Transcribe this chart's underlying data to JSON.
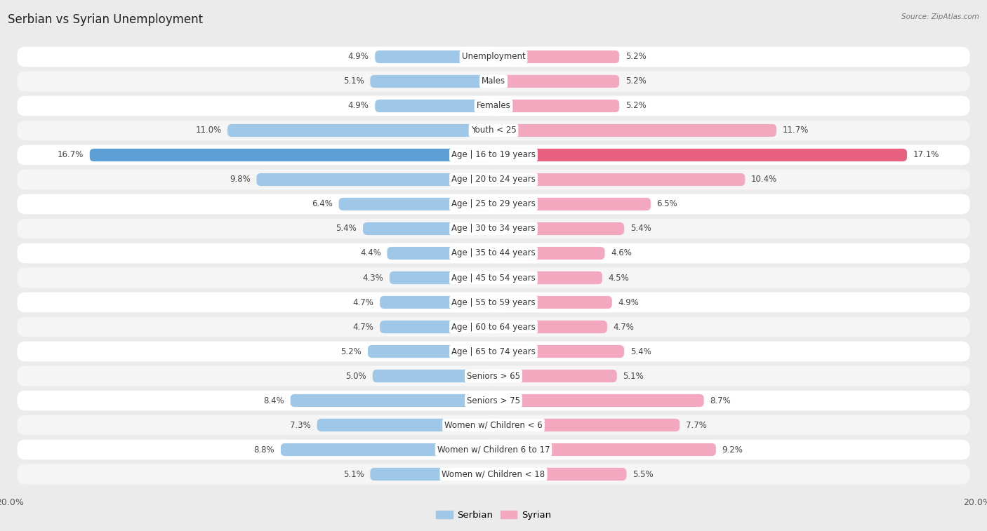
{
  "title": "Serbian vs Syrian Unemployment",
  "source": "Source: ZipAtlas.com",
  "categories": [
    "Unemployment",
    "Males",
    "Females",
    "Youth < 25",
    "Age | 16 to 19 years",
    "Age | 20 to 24 years",
    "Age | 25 to 29 years",
    "Age | 30 to 34 years",
    "Age | 35 to 44 years",
    "Age | 45 to 54 years",
    "Age | 55 to 59 years",
    "Age | 60 to 64 years",
    "Age | 65 to 74 years",
    "Seniors > 65",
    "Seniors > 75",
    "Women w/ Children < 6",
    "Women w/ Children 6 to 17",
    "Women w/ Children < 18"
  ],
  "serbian": [
    4.9,
    5.1,
    4.9,
    11.0,
    16.7,
    9.8,
    6.4,
    5.4,
    4.4,
    4.3,
    4.7,
    4.7,
    5.2,
    5.0,
    8.4,
    7.3,
    8.8,
    5.1
  ],
  "syrian": [
    5.2,
    5.2,
    5.2,
    11.7,
    17.1,
    10.4,
    6.5,
    5.4,
    4.6,
    4.5,
    4.9,
    4.7,
    5.4,
    5.1,
    8.7,
    7.7,
    9.2,
    5.5
  ],
  "serbian_color": "#9fc8e8",
  "syrian_color": "#f4a8c0",
  "highlight_serbian_color": "#5b9fd4",
  "highlight_syrian_color": "#e86080",
  "background_color": "#ebebeb",
  "row_bg_odd": "#f5f5f5",
  "row_bg_even": "#ffffff",
  "max_val": 20.0,
  "bar_height": 0.52,
  "title_fontsize": 12,
  "label_fontsize": 8.5,
  "value_fontsize": 8.5,
  "legend_fontsize": 9.5,
  "highlight_rows": [
    4
  ]
}
